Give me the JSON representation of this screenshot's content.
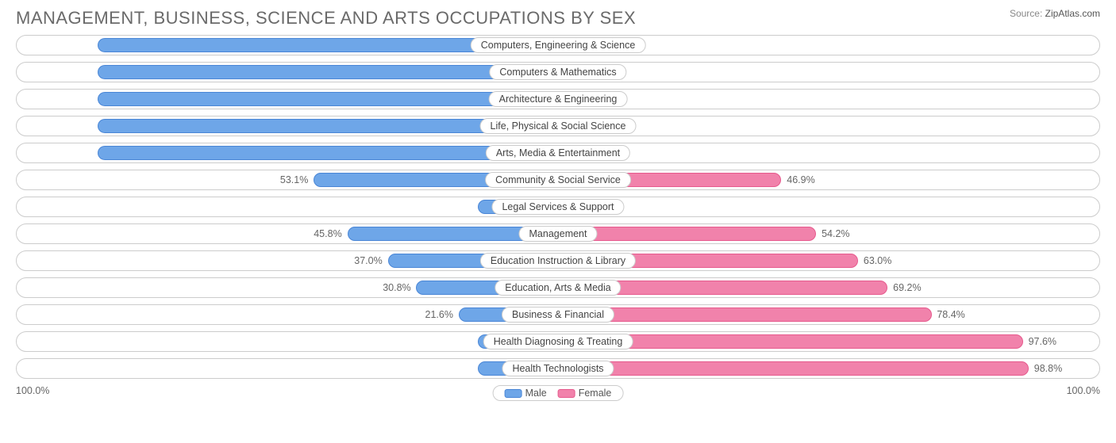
{
  "chart": {
    "title": "MANAGEMENT, BUSINESS, SCIENCE AND ARTS OCCUPATIONS BY SEX",
    "source_label": "Source:",
    "source_site": "ZipAtlas.com",
    "type": "diverging-bar",
    "background_color": "#ffffff",
    "row_border_color": "#cccccc",
    "title_color": "#6a6a6a",
    "title_fontsize": 22,
    "label_fontsize": 12.5,
    "label_color": "#444444",
    "value_color": "#666666",
    "male_color": "#6ea6e8",
    "male_border": "#4a86d6",
    "female_color": "#f182ab",
    "female_border": "#e65a8d",
    "male_bar_dead_zone_pct": 15,
    "female_bar_dead_zone_pct": 12,
    "axis_left": "100.0%",
    "axis_right": "100.0%",
    "legend": {
      "male": "Male",
      "female": "Female"
    },
    "rows": [
      {
        "label": "Computers, Engineering & Science",
        "male": 100.0,
        "female": 0.0
      },
      {
        "label": "Computers & Mathematics",
        "male": 100.0,
        "female": 0.0
      },
      {
        "label": "Architecture & Engineering",
        "male": 100.0,
        "female": 0.0
      },
      {
        "label": "Life, Physical & Social Science",
        "male": 100.0,
        "female": 0.0
      },
      {
        "label": "Arts, Media & Entertainment",
        "male": 100.0,
        "female": 0.0
      },
      {
        "label": "Community & Social Service",
        "male": 53.1,
        "female": 46.9
      },
      {
        "label": "Legal Services & Support",
        "male": 0.0,
        "female": 0.0
      },
      {
        "label": "Management",
        "male": 45.8,
        "female": 54.2
      },
      {
        "label": "Education Instruction & Library",
        "male": 37.0,
        "female": 63.0
      },
      {
        "label": "Education, Arts & Media",
        "male": 30.8,
        "female": 69.2
      },
      {
        "label": "Business & Financial",
        "male": 21.6,
        "female": 78.4
      },
      {
        "label": "Health Diagnosing & Treating",
        "male": 2.4,
        "female": 97.6
      },
      {
        "label": "Health Technologists",
        "male": 1.2,
        "female": 98.8
      }
    ]
  }
}
